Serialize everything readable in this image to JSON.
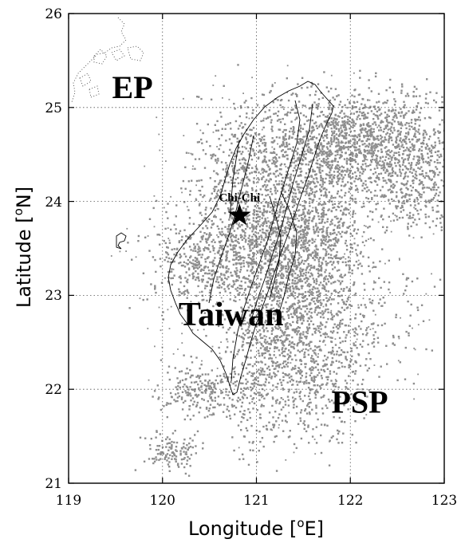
{
  "map": {
    "x_axis": {
      "label": "Longitude [",
      "label_sup": "o",
      "label_tail": "E]",
      "range": [
        119,
        123
      ],
      "ticks": [
        "119",
        "120",
        "121",
        "122",
        "123"
      ]
    },
    "y_axis": {
      "label": "Latitude [",
      "label_sup": "o",
      "label_tail": "N]",
      "range": [
        21,
        26
      ],
      "ticks": [
        "21",
        "22",
        "23",
        "24",
        "25",
        "26"
      ]
    },
    "grid": true,
    "regions": [
      {
        "id": "ep",
        "text": "EP",
        "lon": 119.68,
        "lat": 25.22
      },
      {
        "id": "taiwan",
        "text": "Taiwan",
        "lon": 120.73,
        "lat": 22.8
      },
      {
        "id": "psp",
        "text": "PSP",
        "lon": 122.1,
        "lat": 21.87
      }
    ],
    "epicenter": {
      "label": "Chi-Chi",
      "lon": 120.82,
      "lat": 23.85
    },
    "colors": {
      "seismicity": "#8e8e8e",
      "coastline": "#000000",
      "grid": "#555555"
    }
  }
}
